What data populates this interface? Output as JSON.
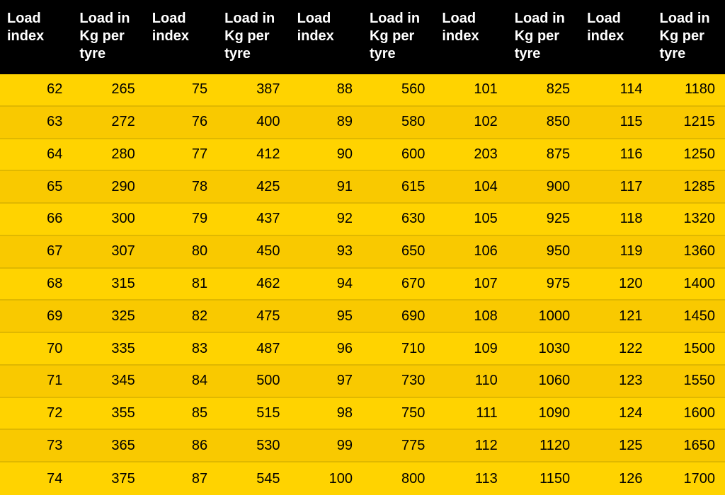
{
  "table": {
    "type": "table",
    "header_bg": "#000000",
    "header_fg": "#ffffff",
    "row_bg_odd": "#ffd300",
    "row_bg_even": "#f9c900",
    "row_separator": "#e0b800",
    "cell_fg": "#000000",
    "header_fontsize": 20,
    "cell_fontsize": 20,
    "col_count": 10,
    "row_count": 13,
    "columns": [
      "Load index",
      "Load in Kg per tyre",
      "Load index",
      "Load in Kg per tyre",
      "Load index",
      "Load in Kg per tyre",
      "Load index",
      "Load in Kg per tyre",
      "Load index",
      "Load in Kg per tyre"
    ],
    "rows": [
      [
        62,
        265,
        75,
        387,
        88,
        560,
        101,
        825,
        114,
        1180
      ],
      [
        63,
        272,
        76,
        400,
        89,
        580,
        102,
        850,
        115,
        1215
      ],
      [
        64,
        280,
        77,
        412,
        90,
        600,
        203,
        875,
        116,
        1250
      ],
      [
        65,
        290,
        78,
        425,
        91,
        615,
        104,
        900,
        117,
        1285
      ],
      [
        66,
        300,
        79,
        437,
        92,
        630,
        105,
        925,
        118,
        1320
      ],
      [
        67,
        307,
        80,
        450,
        93,
        650,
        106,
        950,
        119,
        1360
      ],
      [
        68,
        315,
        81,
        462,
        94,
        670,
        107,
        975,
        120,
        1400
      ],
      [
        69,
        325,
        82,
        475,
        95,
        690,
        108,
        1000,
        121,
        1450
      ],
      [
        70,
        335,
        83,
        487,
        96,
        710,
        109,
        1030,
        122,
        1500
      ],
      [
        71,
        345,
        84,
        500,
        97,
        730,
        110,
        1060,
        123,
        1550
      ],
      [
        72,
        355,
        85,
        515,
        98,
        750,
        111,
        1090,
        124,
        1600
      ],
      [
        73,
        365,
        86,
        530,
        99,
        775,
        112,
        1120,
        125,
        1650
      ],
      [
        74,
        375,
        87,
        545,
        100,
        800,
        113,
        1150,
        126,
        1700
      ]
    ]
  }
}
